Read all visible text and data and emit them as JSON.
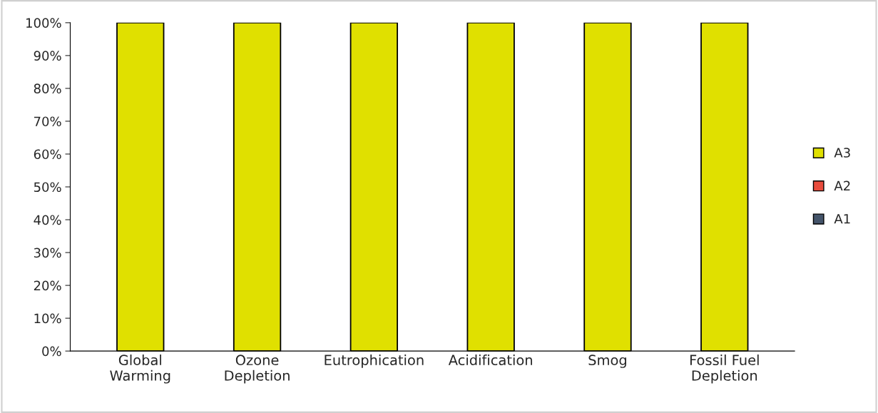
{
  "chart_data": {
    "type": "bar",
    "stacked": true,
    "categories": [
      "Global\nWarming",
      "Ozone\nDepletion",
      "Eutrophication",
      "Acidification",
      "Smog",
      "Fossil Fuel\nDepletion"
    ],
    "series": [
      {
        "name": "A1",
        "color": "#44546a",
        "values": [
          0,
          0,
          0,
          0,
          0,
          0
        ]
      },
      {
        "name": "A2",
        "color": "#e84c3d",
        "values": [
          0,
          0,
          0,
          0,
          0,
          0
        ]
      },
      {
        "name": "A3",
        "color": "#e0e000",
        "values": [
          100,
          100,
          100,
          100,
          100,
          100
        ]
      }
    ],
    "ylim": [
      0,
      100
    ],
    "yticks": [
      {
        "value": 0,
        "label": "0%"
      },
      {
        "value": 10,
        "label": "10%"
      },
      {
        "value": 20,
        "label": "20%"
      },
      {
        "value": 30,
        "label": "30%"
      },
      {
        "value": 40,
        "label": "40%"
      },
      {
        "value": 50,
        "label": "50%"
      },
      {
        "value": 60,
        "label": "60%"
      },
      {
        "value": 70,
        "label": "70%"
      },
      {
        "value": 80,
        "label": "80%"
      },
      {
        "value": 90,
        "label": "90%"
      },
      {
        "value": 100,
        "label": "100%"
      }
    ],
    "grid": false,
    "legend": "right"
  }
}
